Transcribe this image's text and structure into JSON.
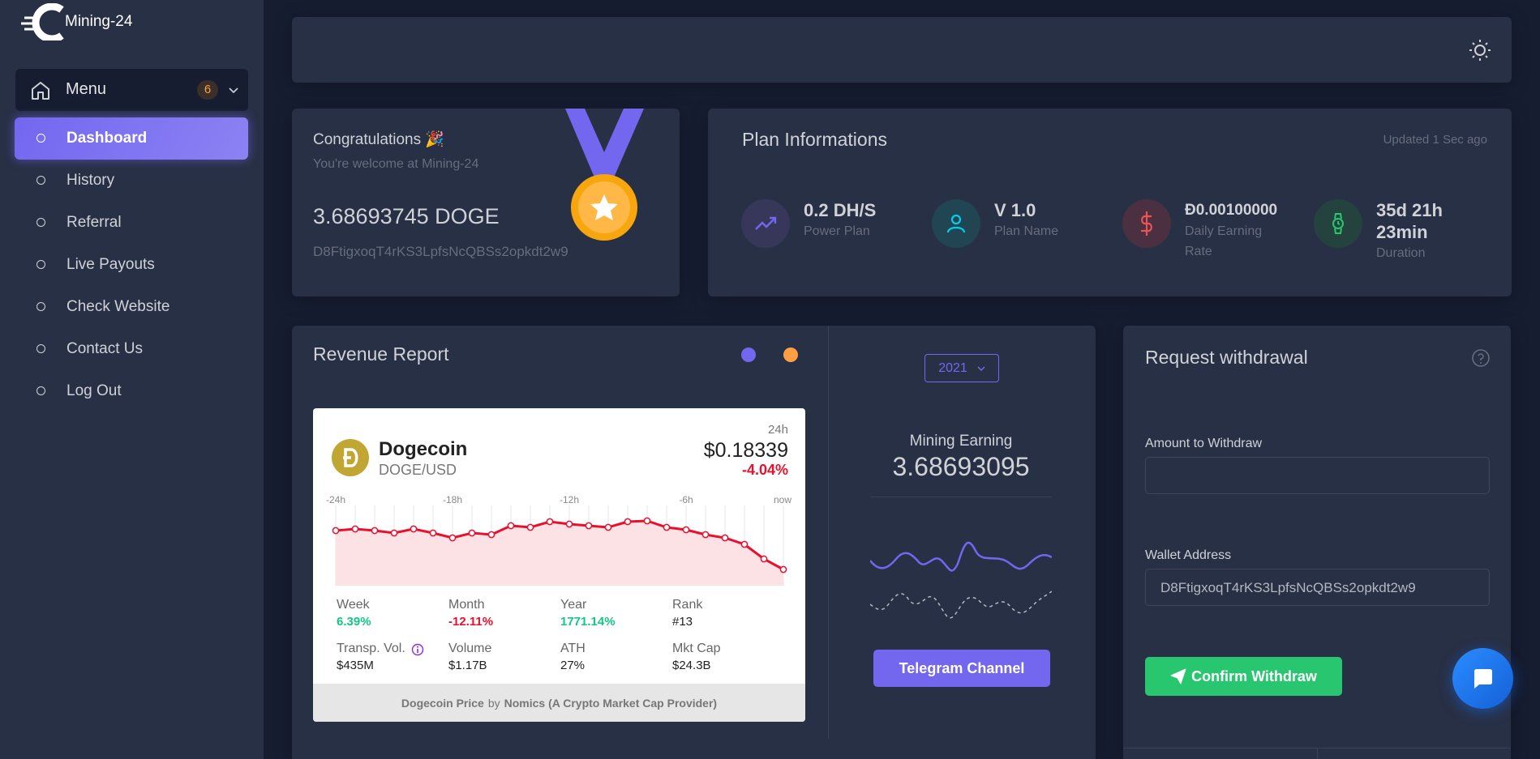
{
  "brand": "Mining-24",
  "sidebar": {
    "menu": "Menu",
    "badge": "6",
    "items": [
      "Dashboard",
      "History",
      "Referral",
      "Live Payouts",
      "Check Website",
      "Contact Us",
      "Log Out"
    ]
  },
  "welcome": {
    "title": "Congratulations 🎉",
    "subtitle": "You're welcome at Mining-24",
    "balance": "3.68693745 DOGE",
    "address": "D8FtigxoqT4rKS3LpfsNcQBSs2opkdt2w9"
  },
  "plan": {
    "title": "Plan Informations",
    "updated": "Updated 1 Sec ago",
    "stats": [
      {
        "value": "0.2 DH/S",
        "label": "Power Plan"
      },
      {
        "value": "V 1.0",
        "label": "Plan Name"
      },
      {
        "value": "Đ0.00100000",
        "label": "Daily Earning Rate"
      },
      {
        "value": "35d 21h 23min",
        "label": "Duration"
      }
    ]
  },
  "revenue": {
    "title": "Revenue Report",
    "year": "2021",
    "earning_label": "Mining Earning",
    "earning": "3.68693095",
    "button": "Telegram Channel"
  },
  "ticker": {
    "name": "Dogecoin",
    "pair": "DOGE/USD",
    "period": "24h",
    "price": "$0.18339",
    "change": "-4.04%",
    "time_labels": [
      "-24h",
      "-18h",
      "-12h",
      "-6h",
      "now"
    ],
    "stats": [
      {
        "label": "Week",
        "value": "6.39%"
      },
      {
        "label": "Month",
        "value": "-12.11%"
      },
      {
        "label": "Year",
        "value": "1771.14%"
      },
      {
        "label": "Rank",
        "value": "#13"
      },
      {
        "label": "Transp. Vol.",
        "value": "$435M"
      },
      {
        "label": "Volume",
        "value": "$1.17B"
      },
      {
        "label": "ATH",
        "value": "27%"
      },
      {
        "label": "Mkt Cap",
        "value": "$24.3B"
      }
    ],
    "footer": {
      "link": "Dogecoin Price",
      "by": "by",
      "provider": "Nomics (A Crypto Market Cap Provider)"
    }
  },
  "withdraw": {
    "title": "Request withdrawal",
    "amount_label": "Amount to Withdraw",
    "wallet_label": "Wallet Address",
    "wallet_value": "D8FtigxoqT4rKS3LpfsNcQBSs2opkdt2w9",
    "button": "Confirm Withdraw"
  }
}
